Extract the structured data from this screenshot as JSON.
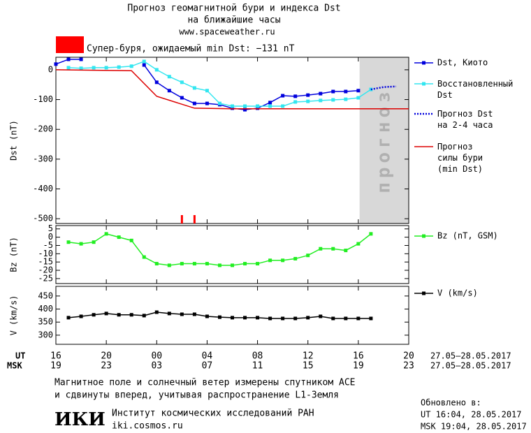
{
  "header": {
    "title_lines": [
      "Прогноз геомагнитной бури и индекса Dst",
      "на ближайшие часы"
    ],
    "source": "www.spaceweather.ru",
    "alert": "Супер-буря, ожидаемый min Dst: −131 nT",
    "alert_color": "#ff0000"
  },
  "time_axis": {
    "xlim": [
      0,
      28
    ],
    "ut_label": "UT",
    "msk_label": "MSK",
    "ut_ticks": [
      {
        "value": 0,
        "label": "16"
      },
      {
        "value": 4,
        "label": "20"
      },
      {
        "value": 8,
        "label": "00"
      },
      {
        "value": 12,
        "label": "04"
      },
      {
        "value": 16,
        "label": "08"
      },
      {
        "value": 20,
        "label": "12"
      },
      {
        "value": 24,
        "label": "16"
      },
      {
        "value": 28,
        "label": "20"
      }
    ],
    "msk_ticks": [
      {
        "value": 0,
        "label": "19"
      },
      {
        "value": 4,
        "label": "23"
      },
      {
        "value": 8,
        "label": "03"
      },
      {
        "value": 12,
        "label": "07"
      },
      {
        "value": 16,
        "label": "11"
      },
      {
        "value": 20,
        "label": "15"
      },
      {
        "value": 24,
        "label": "19"
      },
      {
        "value": 28,
        "label": "23"
      }
    ],
    "ut_dates": "27.05–28.05.2017",
    "msk_dates": "27.05–28.05.2017"
  },
  "chart_data": [
    {
      "type": "line",
      "ylabel": "Dst (nT)",
      "xlim": [
        0,
        28
      ],
      "ylim": [
        -516,
        42
      ],
      "yticks": [
        0,
        -100,
        -200,
        -300,
        -400,
        -500
      ],
      "forecast_region": [
        24.1,
        28
      ],
      "forecast_label": "прогноз",
      "storm_marks": [
        10,
        11
      ],
      "storm_color": "#ff0000",
      "series": [
        {
          "name": "Dst, Киото",
          "color": "#0000dd",
          "marker": "square",
          "dash": "none",
          "x": [
            0,
            1,
            2,
            3,
            4,
            5,
            6,
            7,
            8,
            9,
            10,
            11,
            12,
            13,
            14,
            15,
            16,
            17,
            18,
            19,
            20,
            21,
            22,
            23,
            24
          ],
          "values": [
            19,
            35,
            35,
            null,
            null,
            null,
            null,
            16,
            -42,
            -70,
            -94,
            -113,
            -113,
            -117,
            -129,
            -134,
            -129,
            -110,
            -87,
            -89,
            -85,
            -80,
            -73,
            -73,
            -70
          ]
        },
        {
          "name": "Восстановленный\nDst",
          "color": "#33e6f0",
          "marker": "square",
          "dash": "none",
          "x": [
            1,
            2,
            3,
            4,
            5,
            6,
            7,
            8,
            9,
            10,
            11,
            12,
            13,
            14,
            15,
            16,
            17,
            18,
            19,
            20,
            21,
            22,
            23,
            24,
            25
          ],
          "values": [
            7,
            5,
            7,
            7,
            9,
            12,
            28,
            0,
            -23,
            -42,
            -61,
            -70,
            -113,
            -122,
            -122,
            -122,
            -122,
            -122,
            -108,
            -106,
            -103,
            -101,
            -99,
            -94,
            -66
          ]
        },
        {
          "name": "Прогноз Dst\nна 2-4 часа",
          "color": "#0000dd",
          "marker": "none",
          "dash": "2,2",
          "x": [
            25,
            26,
            27
          ],
          "values": [
            -66,
            -58,
            -56
          ]
        },
        {
          "name": "Прогноз\nсилы бури\n(min Dst)",
          "color": "#dd0000",
          "marker": "none",
          "dash": "none",
          "x": [
            0,
            6,
            8,
            11,
            14,
            28
          ],
          "values": [
            0,
            -3,
            -89,
            -129,
            -131,
            -131
          ]
        }
      ]
    },
    {
      "type": "line",
      "ylabel": "Bz (nT)",
      "xlim": [
        0,
        28
      ],
      "ylim": [
        -28,
        7
      ],
      "yticks": [
        5,
        0,
        -5,
        -10,
        -15,
        -20,
        -25
      ],
      "series": [
        {
          "name": "Bz (nT, GSM)",
          "color": "#22ee22",
          "marker": "square",
          "dash": "none",
          "x": [
            1,
            2,
            3,
            4,
            5,
            6,
            7,
            8,
            9,
            10,
            11,
            12,
            13,
            14,
            15,
            16,
            17,
            18,
            19,
            20,
            21,
            22,
            23,
            24,
            25
          ],
          "values": [
            -3,
            -4,
            -3,
            2,
            0,
            -2,
            -12,
            -16,
            -17,
            -16,
            -16,
            -16,
            -17,
            -17,
            -16,
            -16,
            -14,
            -14,
            -13,
            -11,
            -7,
            -7,
            -8,
            -4,
            2
          ]
        }
      ]
    },
    {
      "type": "line",
      "ylabel": "V (km/s)",
      "xlim": [
        0,
        28
      ],
      "ylim": [
        265,
        487
      ],
      "yticks": [
        300,
        350,
        400,
        450
      ],
      "series": [
        {
          "name": "V (km/s)",
          "color": "#000000",
          "marker": "square",
          "dash": "none",
          "x": [
            1,
            2,
            3,
            4,
            5,
            6,
            7,
            8,
            9,
            10,
            11,
            12,
            13,
            14,
            15,
            16,
            17,
            18,
            19,
            20,
            21,
            22,
            23,
            24,
            25
          ],
          "values": [
            367,
            372,
            378,
            383,
            378,
            378,
            375,
            388,
            383,
            380,
            380,
            372,
            369,
            367,
            367,
            367,
            364,
            364,
            364,
            367,
            372,
            364,
            364,
            364,
            364
          ]
        }
      ]
    }
  ],
  "footer": {
    "note_lines": [
      "Магнитное поле и солнечный ветер измерены спутником ACE",
      "и сдвинуты вперед, учитывая распространение L1-Земля"
    ],
    "logo": "ИКИ",
    "institute": "Институт космических исследований РАН",
    "site": "iki.cosmos.ru",
    "updated": "Обновлено в:",
    "updated_ut": "UT   16:04, 28.05.2017",
    "updated_msk": "MSK 19:04, 28.05.2017"
  }
}
